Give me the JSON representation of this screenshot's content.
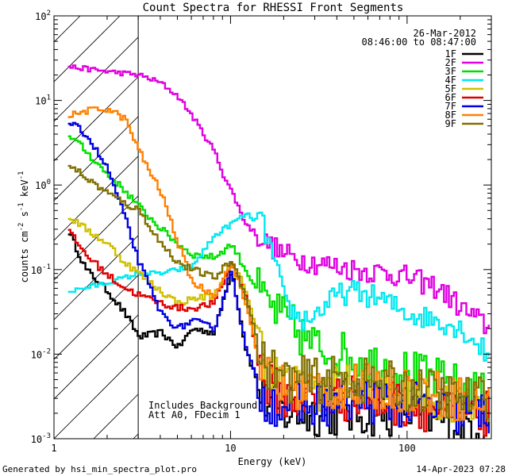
{
  "chart_data": {
    "type": "line",
    "title": "Count Spectra for RHESSI Front Segments",
    "xlabel": "Energy (keV)",
    "ylabel_main": "counts cm",
    "ylabel_sup1": "-2",
    "ylabel_mid": " s",
    "ylabel_sup2": "-1",
    "ylabel_end": " keV",
    "ylabel_sup3": "-1",
    "xscale": "log",
    "yscale": "log",
    "xlim": [
      1,
      300
    ],
    "ylim": [
      0.001,
      100
    ],
    "x_ticks": [
      {
        "value": 1,
        "label": "1"
      },
      {
        "value": 10,
        "label": "10"
      },
      {
        "value": 100,
        "label": "100"
      }
    ],
    "y_ticks": [
      {
        "value": 0.001,
        "base": "10",
        "exp": "-3"
      },
      {
        "value": 0.01,
        "base": "10",
        "exp": "-2"
      },
      {
        "value": 0.1,
        "base": "10",
        "exp": "-1"
      },
      {
        "value": 1,
        "base": "10",
        "exp": "0"
      },
      {
        "value": 10,
        "base": "10",
        "exp": "1"
      },
      {
        "value": 100,
        "base": "10",
        "exp": "2"
      }
    ],
    "date": "26-Mar-2012",
    "time_range": "08:46:00 to 08:47:00",
    "excluded_region": [
      1,
      3
    ],
    "annotations": [
      "Includes Background",
      "Att A0, FDecim 1"
    ],
    "footer_left": "Generated by hsi_min_spectra_plot.pro",
    "footer_right": "14-Apr-2023 07:28",
    "legend_position": "top-right",
    "series": [
      {
        "name": "1F",
        "color": "#000000",
        "points": [
          [
            1.2,
            0.28
          ],
          [
            1.5,
            0.1
          ],
          [
            2,
            0.055
          ],
          [
            2.5,
            0.03
          ],
          [
            3,
            0.016
          ],
          [
            4,
            0.018
          ],
          [
            5,
            0.012
          ],
          [
            6,
            0.02
          ],
          [
            8,
            0.018
          ],
          [
            10,
            0.1
          ],
          [
            12,
            0.012
          ],
          [
            15,
            0.003
          ],
          [
            20,
            0.002
          ],
          [
            30,
            0.002
          ],
          [
            50,
            0.002
          ],
          [
            100,
            0.002
          ],
          [
            200,
            0.0015
          ],
          [
            290,
            0.0015
          ]
        ]
      },
      {
        "name": "2F",
        "color": "#e000e0",
        "points": [
          [
            1.2,
            25
          ],
          [
            2,
            22
          ],
          [
            3,
            20
          ],
          [
            4,
            16
          ],
          [
            5,
            11
          ],
          [
            6,
            6.5
          ],
          [
            8,
            2.5
          ],
          [
            9,
            1.3
          ],
          [
            10,
            0.85
          ],
          [
            12,
            0.35
          ],
          [
            15,
            0.22
          ],
          [
            20,
            0.15
          ],
          [
            30,
            0.12
          ],
          [
            50,
            0.1
          ],
          [
            80,
            0.09
          ],
          [
            100,
            0.08
          ],
          [
            150,
            0.06
          ],
          [
            200,
            0.035
          ],
          [
            250,
            0.025
          ],
          [
            290,
            0.02
          ]
        ]
      },
      {
        "name": "3F",
        "color": "#00e000",
        "points": [
          [
            1.2,
            4
          ],
          [
            1.5,
            2.5
          ],
          [
            2,
            1.3
          ],
          [
            2.5,
            0.85
          ],
          [
            3,
            0.55
          ],
          [
            4,
            0.3
          ],
          [
            5,
            0.2
          ],
          [
            6,
            0.15
          ],
          [
            8,
            0.14
          ],
          [
            10,
            0.2
          ],
          [
            12,
            0.1
          ],
          [
            15,
            0.045
          ],
          [
            20,
            0.025
          ],
          [
            30,
            0.012
          ],
          [
            50,
            0.009
          ],
          [
            100,
            0.006
          ],
          [
            200,
            0.004
          ],
          [
            290,
            0.003
          ]
        ]
      },
      {
        "name": "4F",
        "color": "#00e8f0",
        "points": [
          [
            1.2,
            0.055
          ],
          [
            2,
            0.07
          ],
          [
            3,
            0.09
          ],
          [
            4,
            0.09
          ],
          [
            5,
            0.1
          ],
          [
            6,
            0.11
          ],
          [
            8,
            0.25
          ],
          [
            10,
            0.35
          ],
          [
            12,
            0.45
          ],
          [
            15,
            0.35
          ],
          [
            18,
            0.1
          ],
          [
            20,
            0.04
          ],
          [
            25,
            0.025
          ],
          [
            30,
            0.03
          ],
          [
            40,
            0.05
          ],
          [
            50,
            0.055
          ],
          [
            70,
            0.045
          ],
          [
            100,
            0.03
          ],
          [
            150,
            0.025
          ],
          [
            200,
            0.02
          ],
          [
            250,
            0.013
          ],
          [
            290,
            0.009
          ]
        ]
      },
      {
        "name": "5F",
        "color": "#d0c000",
        "points": [
          [
            1.2,
            0.42
          ],
          [
            1.5,
            0.3
          ],
          [
            2,
            0.2
          ],
          [
            2.5,
            0.12
          ],
          [
            3,
            0.09
          ],
          [
            4,
            0.055
          ],
          [
            5,
            0.04
          ],
          [
            6,
            0.045
          ],
          [
            8,
            0.05
          ],
          [
            10,
            0.12
          ],
          [
            12,
            0.06
          ],
          [
            15,
            0.01
          ],
          [
            20,
            0.004
          ],
          [
            30,
            0.004
          ],
          [
            50,
            0.004
          ],
          [
            100,
            0.003
          ],
          [
            200,
            0.003
          ],
          [
            290,
            0.003
          ]
        ]
      },
      {
        "name": "6F",
        "color": "#e00000",
        "points": [
          [
            1.2,
            0.28
          ],
          [
            1.5,
            0.15
          ],
          [
            2,
            0.085
          ],
          [
            2.5,
            0.06
          ],
          [
            3,
            0.05
          ],
          [
            4,
            0.04
          ],
          [
            5,
            0.035
          ],
          [
            6,
            0.035
          ],
          [
            8,
            0.04
          ],
          [
            10,
            0.12
          ],
          [
            12,
            0.05
          ],
          [
            15,
            0.005
          ],
          [
            20,
            0.003
          ],
          [
            30,
            0.003
          ],
          [
            50,
            0.003
          ],
          [
            100,
            0.0025
          ],
          [
            200,
            0.002
          ],
          [
            290,
            0.002
          ]
        ]
      },
      {
        "name": "7F",
        "color": "#0000e0",
        "points": [
          [
            1.2,
            5.5
          ],
          [
            1.5,
            4
          ],
          [
            2,
            1.5
          ],
          [
            2.5,
            0.4
          ],
          [
            3,
            0.12
          ],
          [
            4,
            0.03
          ],
          [
            5,
            0.02
          ],
          [
            6,
            0.025
          ],
          [
            8,
            0.02
          ],
          [
            10,
            0.1
          ],
          [
            12,
            0.012
          ],
          [
            15,
            0.003
          ],
          [
            20,
            0.0025
          ],
          [
            30,
            0.0025
          ],
          [
            50,
            0.003
          ],
          [
            100,
            0.0025
          ],
          [
            200,
            0.002
          ],
          [
            290,
            0.002
          ]
        ]
      },
      {
        "name": "8F",
        "color": "#ff8000",
        "points": [
          [
            1.2,
            6.5
          ],
          [
            1.5,
            7.5
          ],
          [
            2,
            8
          ],
          [
            2.5,
            6
          ],
          [
            3,
            2.5
          ],
          [
            4,
            0.8
          ],
          [
            5,
            0.2
          ],
          [
            6,
            0.07
          ],
          [
            8,
            0.05
          ],
          [
            10,
            0.12
          ],
          [
            12,
            0.04
          ],
          [
            15,
            0.006
          ],
          [
            20,
            0.004
          ],
          [
            30,
            0.004
          ],
          [
            50,
            0.004
          ],
          [
            100,
            0.004
          ],
          [
            200,
            0.003
          ],
          [
            290,
            0.0025
          ]
        ]
      },
      {
        "name": "9F",
        "color": "#807000",
        "points": [
          [
            1.2,
            1.8
          ],
          [
            1.5,
            1.2
          ],
          [
            2,
            0.8
          ],
          [
            2.5,
            0.6
          ],
          [
            3,
            0.5
          ],
          [
            4,
            0.2
          ],
          [
            5,
            0.12
          ],
          [
            6,
            0.1
          ],
          [
            8,
            0.08
          ],
          [
            10,
            0.13
          ],
          [
            12,
            0.05
          ],
          [
            15,
            0.008
          ],
          [
            20,
            0.005
          ],
          [
            30,
            0.005
          ],
          [
            50,
            0.005
          ],
          [
            100,
            0.004
          ],
          [
            200,
            0.003
          ],
          [
            290,
            0.003
          ]
        ]
      }
    ]
  }
}
